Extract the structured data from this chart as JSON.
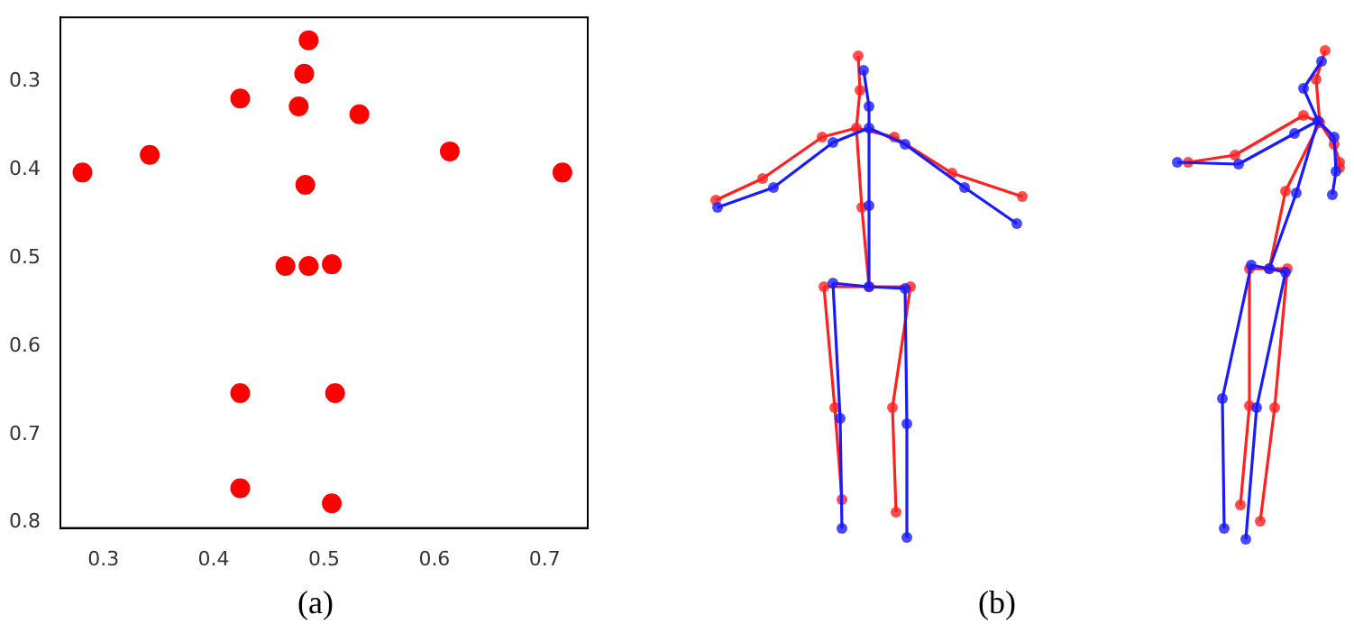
{
  "chart_data": {
    "type": "scatter",
    "x": [
      0.486,
      0.482,
      0.424,
      0.477,
      0.532,
      0.342,
      0.614,
      0.281,
      0.716,
      0.483,
      0.465,
      0.486,
      0.507,
      0.424,
      0.51,
      0.424,
      0.507
    ],
    "values": [
      0.253,
      0.291,
      0.319,
      0.328,
      0.337,
      0.383,
      0.379,
      0.403,
      0.403,
      0.417,
      0.509,
      0.509,
      0.507,
      0.653,
      0.653,
      0.761,
      0.778
    ],
    "color": "#ff0000",
    "marker": "circle",
    "xlim": [
      0.261,
      0.739
    ],
    "xticks": [
      0.3,
      0.4,
      0.5,
      0.6,
      0.7
    ],
    "ylim": [
      0.806,
      0.227
    ],
    "yticks": [
      0.3,
      0.4,
      0.5,
      0.6,
      0.7,
      0.8
    ],
    "grid": false,
    "legend": false,
    "annotations": [
      "(a)",
      "(b)"
    ]
  }
}
